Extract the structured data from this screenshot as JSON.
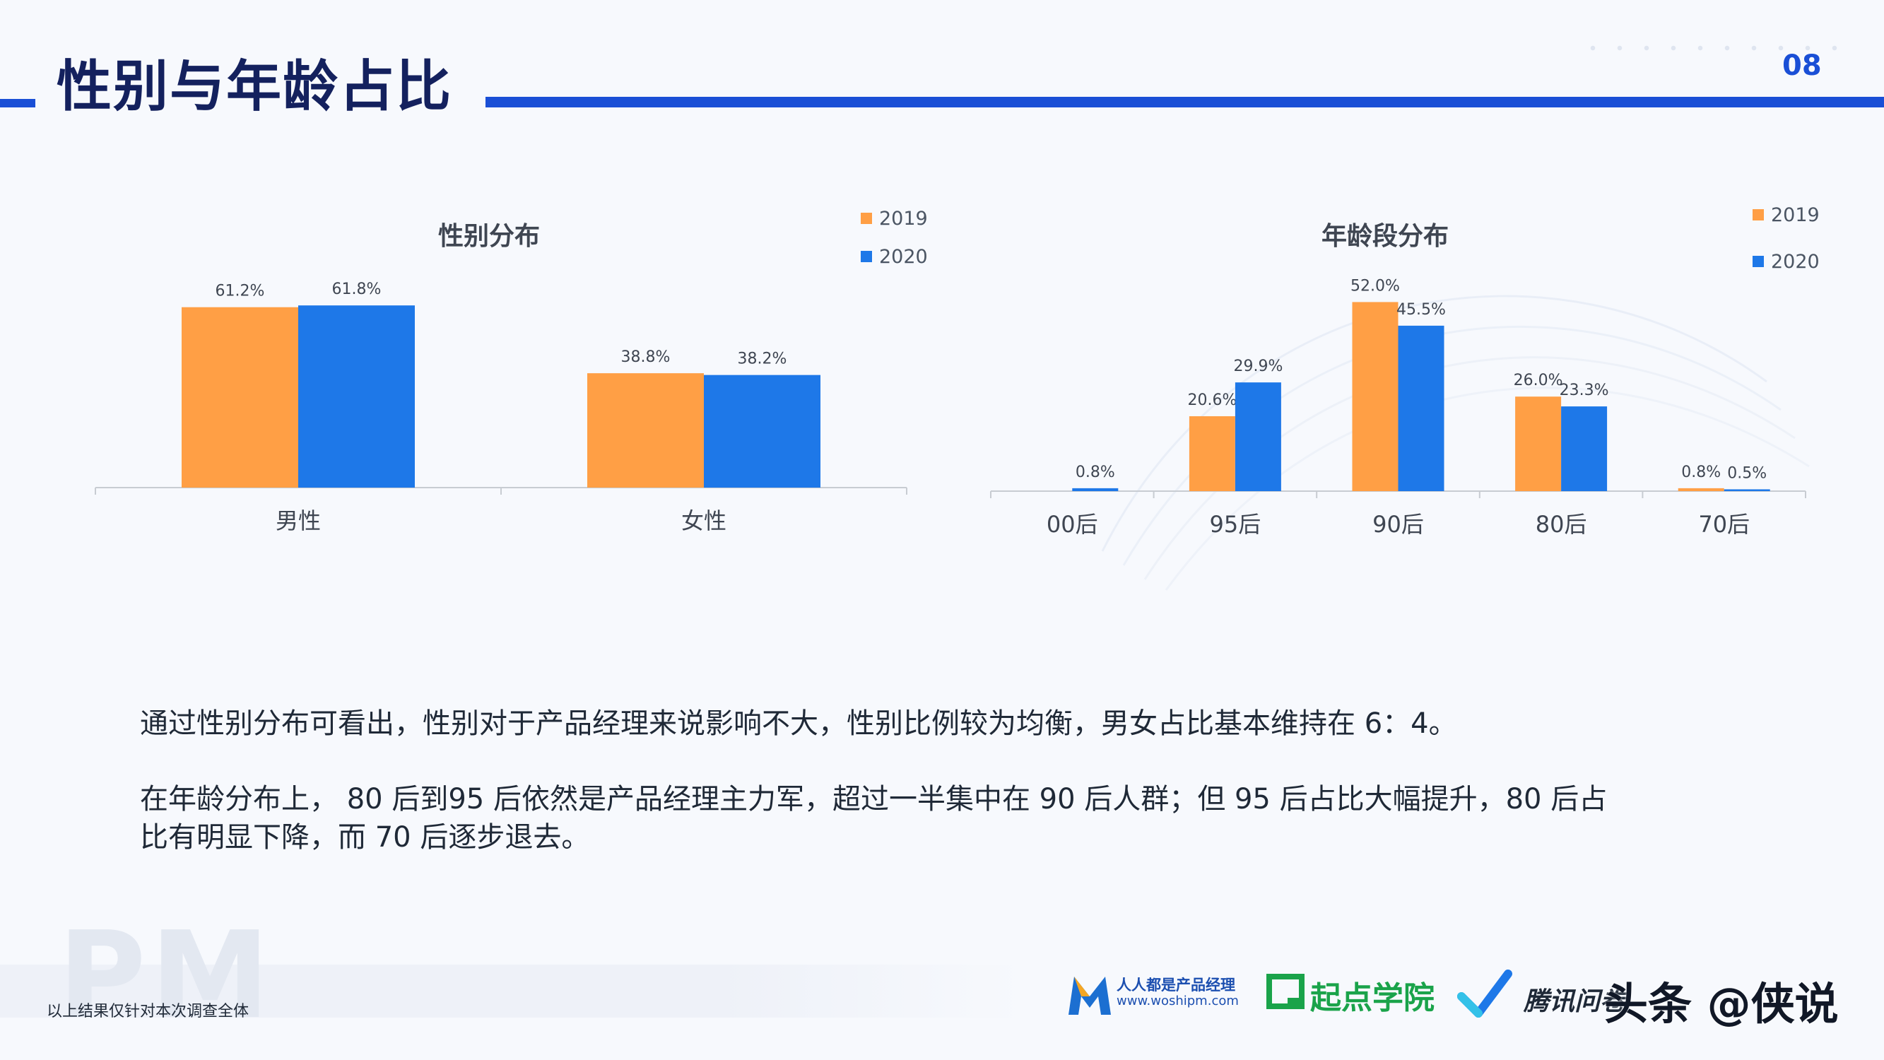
{
  "header": {
    "title": "性别与年龄占比",
    "page_number": "08"
  },
  "colors": {
    "series_2019": "#ff9f45",
    "series_2020": "#1e78e8",
    "accent": "#1a4fd6",
    "title": "#14215e"
  },
  "charts": {
    "gender": {
      "title": "性别分布",
      "legend": [
        "2019",
        "2020"
      ]
    },
    "age": {
      "title": "年龄段分布",
      "legend": [
        "2019",
        "2020"
      ]
    }
  },
  "chart_data": [
    {
      "type": "bar",
      "title": "性别分布",
      "categories": [
        "男性",
        "女性"
      ],
      "series": [
        {
          "name": "2019",
          "values": [
            61.2,
            38.8
          ],
          "labels": [
            "61.2%",
            "38.8%"
          ]
        },
        {
          "name": "2020",
          "values": [
            61.8,
            38.2
          ],
          "labels": [
            "61.8%",
            "38.2%"
          ]
        }
      ],
      "ylim": [
        0,
        70
      ],
      "grid": false,
      "legend_position": "top-right"
    },
    {
      "type": "bar",
      "title": "年龄段分布",
      "categories": [
        "00后",
        "95后",
        "90后",
        "80后",
        "70后"
      ],
      "series": [
        {
          "name": "2019",
          "values": [
            0,
            20.6,
            52.0,
            26.0,
            0.8
          ],
          "labels": [
            "",
            "20.6%",
            "52.0%",
            "26.0%",
            "0.8%"
          ]
        },
        {
          "name": "2020",
          "values": [
            0.8,
            29.9,
            45.5,
            23.3,
            0.5
          ],
          "labels": [
            "0.8%",
            "29.9%",
            "45.5%",
            "23.3%",
            "0.5%"
          ]
        }
      ],
      "ylim": [
        0,
        55
      ],
      "grid": false,
      "legend_position": "top-right"
    }
  ],
  "body": {
    "paragraph_1": "通过性别分布可看出，性别对于产品经理来说影响不大，性别比例较为均衡，男女占比基本维持在 6：4。",
    "paragraph_2_line_1": "在年龄分布上， 80 后到95 后依然是产品经理主力军，超过一半集中在 90 后人群；但 95 后占比大幅提升，80 后占",
    "paragraph_2_line_2": "比有明显下降，而 70 后逐步退去。"
  },
  "footer": {
    "watermark": "PM",
    "note": "以上结果仅针对本次调查全体",
    "logos": {
      "woshipm_name": "人人都是产品经理",
      "woshipm_url": "www.woshipm.com",
      "qidian": "起点学院",
      "tencent_wenjuan": "腾讯问卷",
      "toutiao_credit": "头条 @侠说"
    }
  }
}
